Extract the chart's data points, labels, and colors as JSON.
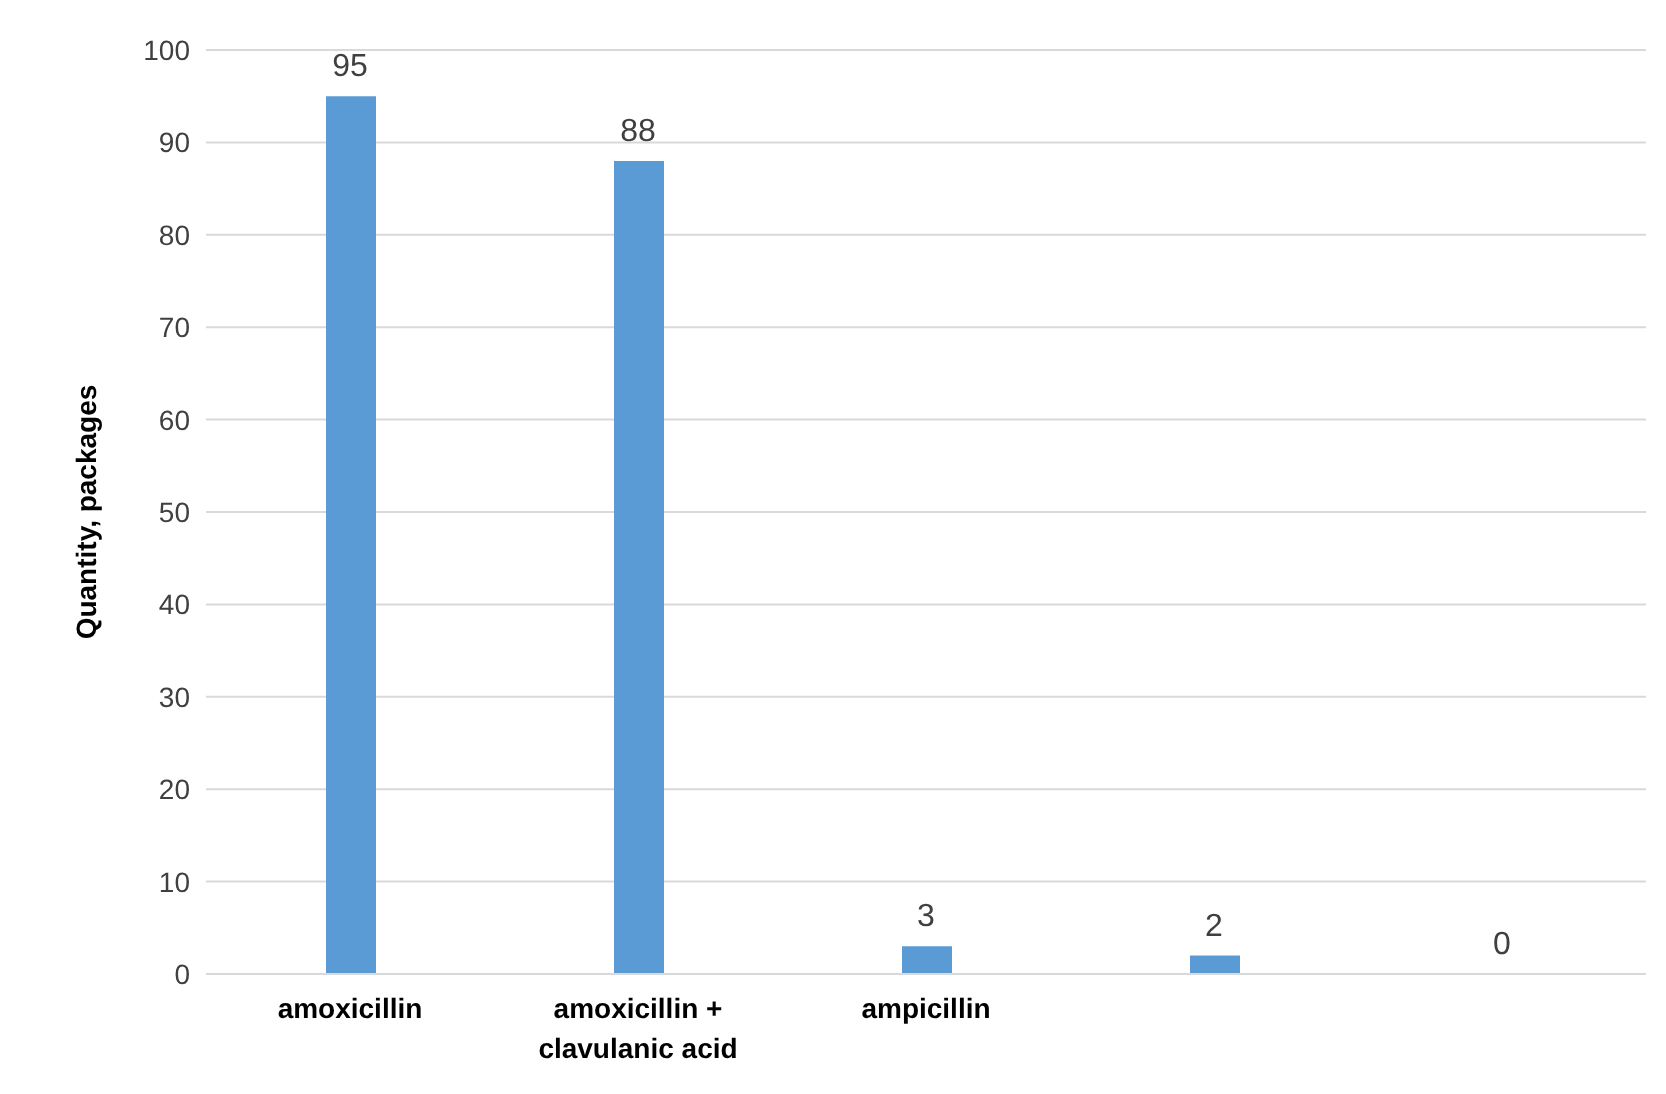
{
  "chart_data": {
    "type": "bar",
    "ylabel": "Quantity, packages",
    "categories": [
      "amoxicillin",
      "amoxicillin + clavulanic acid",
      "ampicillin",
      null,
      null
    ],
    "values": [
      95,
      88,
      3,
      2,
      0
    ],
    "color": "#5b9bd5",
    "data_labels": true,
    "ylim": [
      0,
      100
    ],
    "yticks": [
      0,
      10,
      20,
      30,
      40,
      50,
      60,
      70,
      80,
      90,
      100
    ],
    "grid": "y"
  }
}
